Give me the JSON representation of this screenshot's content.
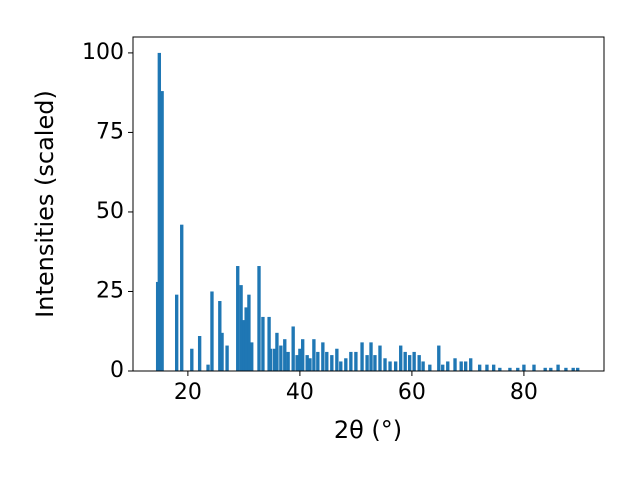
{
  "chart_data": {
    "type": "bar",
    "xlabel": "2θ (°)",
    "ylabel": "Intensities (scaled)",
    "color": "#1f77b4",
    "x": [
      14.6,
      14.9,
      15.4,
      18.0,
      18.9,
      20.7,
      22.1,
      23.6,
      24.3,
      25.7,
      26.1,
      27.0,
      28.9,
      29.5,
      30.0,
      30.4,
      30.9,
      31.4,
      32.7,
      33.4,
      34.5,
      34.8,
      35.5,
      35.9,
      36.6,
      37.3,
      37.9,
      38.8,
      39.5,
      40.0,
      40.5,
      41.3,
      41.8,
      42.5,
      43.2,
      44.1,
      44.8,
      45.7,
      46.6,
      47.3,
      48.2,
      49.1,
      50.0,
      51.1,
      52.0,
      52.7,
      53.4,
      54.3,
      55.2,
      56.1,
      57.1,
      58.0,
      58.8,
      59.6,
      60.4,
      61.3,
      62.0,
      63.2,
      64.8,
      65.5,
      66.4,
      67.7,
      68.8,
      69.6,
      70.5,
      72.1,
      73.4,
      74.6,
      75.7,
      77.5,
      78.9,
      80.0,
      81.8,
      83.8,
      84.8,
      86.1,
      87.5,
      88.8,
      89.6
    ],
    "values": [
      28,
      100,
      88,
      24,
      46,
      7,
      11,
      2,
      25,
      22,
      12,
      8,
      33,
      27,
      16,
      20,
      24,
      9,
      33,
      17,
      17,
      7,
      7,
      12,
      8,
      10,
      6,
      14,
      5,
      7,
      10,
      5,
      4,
      10,
      6,
      9,
      6,
      5,
      7,
      3,
      4,
      6,
      6,
      9,
      5,
      9,
      5,
      8,
      4,
      3,
      3,
      8,
      6,
      5,
      6,
      5,
      3,
      2,
      8,
      2,
      3,
      4,
      3,
      3,
      4,
      2,
      2,
      2,
      1,
      1,
      1,
      2,
      2,
      1,
      1,
      2,
      1,
      1,
      1
    ],
    "xlim": [
      10.2,
      94.3
    ],
    "ylim": [
      0,
      105
    ],
    "xticks": [
      20,
      40,
      60,
      80
    ],
    "yticks": [
      0,
      25,
      50,
      75,
      100
    ]
  }
}
